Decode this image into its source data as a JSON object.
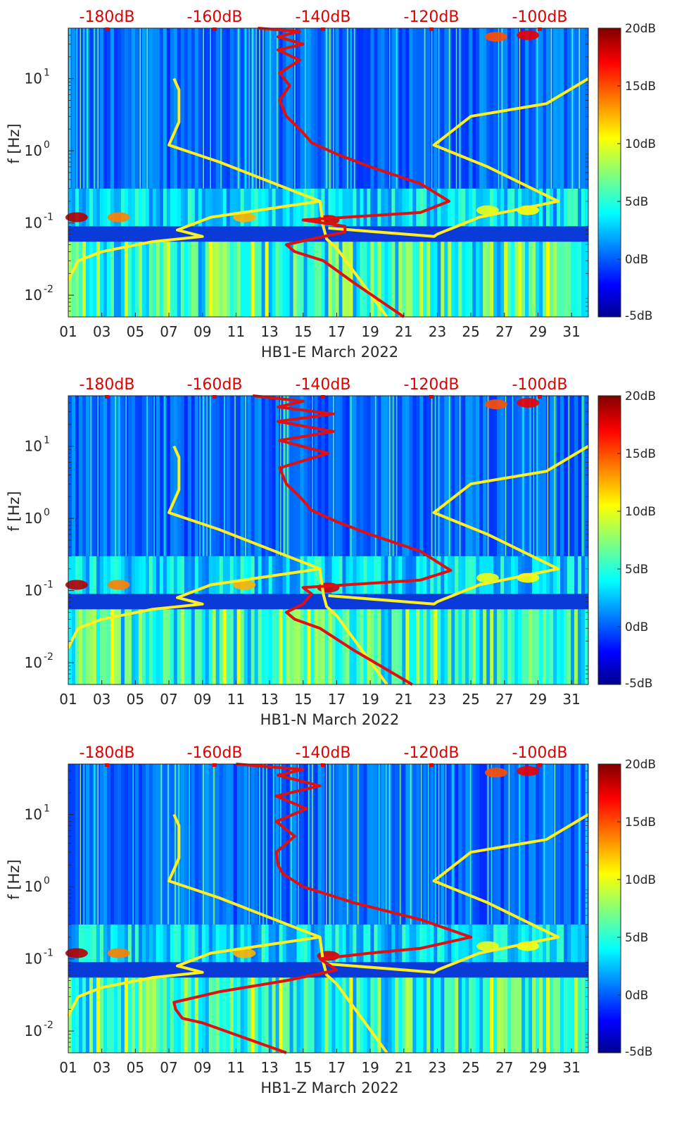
{
  "chart_data": [
    {
      "type": "heatmap",
      "title": "",
      "xlabel": "HB1-E March 2022",
      "ylabel": "f [Hz]",
      "x_ticks": [
        "01",
        "03",
        "05",
        "07",
        "09",
        "11",
        "13",
        "15",
        "17",
        "19",
        "21",
        "23",
        "25",
        "27",
        "29",
        "31"
      ],
      "y_ticks": [
        "10^-2",
        "10^-1",
        "10^0",
        "10^1"
      ],
      "y_scale": "log",
      "ylim": [
        0.005,
        50
      ],
      "xlim": [
        1,
        32
      ],
      "top_axis_labels": [
        "-180dB",
        "-160dB",
        "-140dB",
        "-120dB",
        "-100dB"
      ],
      "colorbar": {
        "ticks": [
          "20dB",
          "15dB",
          "10dB",
          "5dB",
          "0dB",
          "-5dB"
        ],
        "range": [
          -5,
          20
        ],
        "colormap": "jet"
      },
      "series": [
        {
          "color": "#ffee20",
          "points": [
            [
              20.0,
              0.005
            ],
            [
              17.0,
              0.045
            ],
            [
              16.4,
              0.06
            ],
            [
              16.2,
              0.09
            ],
            [
              16.0,
              0.2
            ],
            [
              10.0,
              0.7
            ],
            [
              7.0,
              1.2
            ],
            [
              7.6,
              2.5
            ],
            [
              7.6,
              7.0
            ],
            [
              7.3,
              10.0
            ]
          ]
        },
        {
          "color": "#ffee20",
          "points": [
            [
              1.0,
              0.016
            ],
            [
              1.2,
              0.02
            ],
            [
              1.6,
              0.03
            ],
            [
              3.0,
              0.04
            ],
            [
              6.0,
              0.055
            ],
            [
              9.0,
              0.065
            ],
            [
              7.5,
              0.08
            ],
            [
              9.5,
              0.12
            ],
            [
              16.0,
              0.2
            ]
          ]
        },
        {
          "color": "#ffee20",
          "points": [
            [
              16.5,
              0.085
            ],
            [
              22.8,
              0.065
            ],
            [
              23.0,
              0.07
            ],
            [
              25.5,
              0.12
            ],
            [
              30.2,
              0.2
            ],
            [
              26.0,
              0.6
            ],
            [
              22.8,
              1.2
            ],
            [
              25.0,
              3.0
            ],
            [
              29.5,
              4.5
            ],
            [
              32.0,
              10.0
            ]
          ]
        },
        {
          "color": "#e01010",
          "points": [
            [
              21.0,
              0.005
            ],
            [
              18.0,
              0.015
            ],
            [
              16.2,
              0.03
            ],
            [
              14.5,
              0.04
            ],
            [
              14.0,
              0.05
            ],
            [
              15.5,
              0.06
            ],
            [
              17.5,
              0.075
            ],
            [
              17.5,
              0.09
            ],
            [
              15.0,
              0.11
            ],
            [
              22.0,
              0.14
            ],
            [
              23.7,
              0.2
            ],
            [
              22.0,
              0.35
            ],
            [
              19.0,
              0.6
            ],
            [
              17.0,
              0.9
            ],
            [
              15.5,
              1.3
            ],
            [
              14.8,
              2.0
            ],
            [
              14.0,
              3.0
            ],
            [
              13.6,
              5.0
            ],
            [
              14.2,
              8.0
            ],
            [
              13.6,
              12.0
            ],
            [
              14.8,
              18.0
            ],
            [
              13.5,
              25.0
            ],
            [
              15.0,
              30.0
            ],
            [
              13.5,
              38.0
            ],
            [
              14.8,
              45.0
            ],
            [
              12.3,
              50.0
            ]
          ]
        }
      ]
    },
    {
      "type": "heatmap",
      "title": "",
      "xlabel": "HB1-N March 2022",
      "ylabel": "f [Hz]",
      "x_ticks": [
        "01",
        "03",
        "05",
        "07",
        "09",
        "11",
        "13",
        "15",
        "17",
        "19",
        "21",
        "23",
        "25",
        "27",
        "29",
        "31"
      ],
      "y_ticks": [
        "10^-2",
        "10^-1",
        "10^0",
        "10^1"
      ],
      "y_scale": "log",
      "ylim": [
        0.005,
        50
      ],
      "xlim": [
        1,
        32
      ],
      "top_axis_labels": [
        "-180dB",
        "-160dB",
        "-140dB",
        "-120dB",
        "-100dB"
      ],
      "colorbar": {
        "ticks": [
          "20dB",
          "15dB",
          "10dB",
          "5dB",
          "0dB",
          "-5dB"
        ],
        "range": [
          -5,
          20
        ],
        "colormap": "jet"
      },
      "series": [
        {
          "color": "#ffee20",
          "points": [
            [
              20.0,
              0.005
            ],
            [
              17.0,
              0.045
            ],
            [
              16.4,
              0.06
            ],
            [
              16.2,
              0.09
            ],
            [
              16.0,
              0.2
            ],
            [
              10.0,
              0.7
            ],
            [
              7.0,
              1.2
            ],
            [
              7.6,
              2.5
            ],
            [
              7.6,
              7.0
            ],
            [
              7.3,
              10.0
            ]
          ]
        },
        {
          "color": "#ffee20",
          "points": [
            [
              1.0,
              0.016
            ],
            [
              1.2,
              0.02
            ],
            [
              1.6,
              0.03
            ],
            [
              3.0,
              0.04
            ],
            [
              6.0,
              0.055
            ],
            [
              9.0,
              0.065
            ],
            [
              7.5,
              0.08
            ],
            [
              9.5,
              0.12
            ],
            [
              16.0,
              0.2
            ]
          ]
        },
        {
          "color": "#ffee20",
          "points": [
            [
              16.5,
              0.085
            ],
            [
              22.8,
              0.065
            ],
            [
              23.0,
              0.07
            ],
            [
              25.5,
              0.12
            ],
            [
              30.2,
              0.2
            ],
            [
              26.0,
              0.6
            ],
            [
              22.8,
              1.2
            ],
            [
              25.0,
              3.0
            ],
            [
              29.5,
              4.5
            ],
            [
              32.0,
              10.0
            ]
          ]
        },
        {
          "color": "#e01010",
          "points": [
            [
              21.5,
              0.005
            ],
            [
              18.0,
              0.015
            ],
            [
              16.0,
              0.03
            ],
            [
              14.5,
              0.04
            ],
            [
              14.0,
              0.05
            ],
            [
              15.0,
              0.065
            ],
            [
              15.5,
              0.09
            ],
            [
              15.0,
              0.11
            ],
            [
              22.0,
              0.14
            ],
            [
              23.8,
              0.19
            ],
            [
              22.0,
              0.35
            ],
            [
              19.0,
              0.6
            ],
            [
              17.0,
              0.9
            ],
            [
              15.5,
              1.3
            ],
            [
              14.8,
              2.0
            ],
            [
              14.0,
              3.0
            ],
            [
              13.6,
              5.0
            ],
            [
              16.5,
              8.0
            ],
            [
              13.6,
              12.0
            ],
            [
              16.8,
              16.0
            ],
            [
              13.5,
              22.0
            ],
            [
              16.8,
              28.0
            ],
            [
              13.5,
              35.0
            ],
            [
              15.0,
              42.0
            ],
            [
              12.0,
              50.0
            ]
          ]
        }
      ]
    },
    {
      "type": "heatmap",
      "title": "",
      "xlabel": "HB1-Z March 2022",
      "ylabel": "f [Hz]",
      "x_ticks": [
        "01",
        "03",
        "05",
        "07",
        "09",
        "11",
        "13",
        "15",
        "17",
        "19",
        "21",
        "23",
        "25",
        "27",
        "29",
        "31"
      ],
      "y_ticks": [
        "10^-2",
        "10^-1",
        "10^0",
        "10^1"
      ],
      "y_scale": "log",
      "ylim": [
        0.005,
        50
      ],
      "xlim": [
        1,
        32
      ],
      "top_axis_labels": [
        "-180dB",
        "-160dB",
        "-140dB",
        "-120dB",
        "-100dB"
      ],
      "colorbar": {
        "ticks": [
          "20dB",
          "15dB",
          "10dB",
          "5dB",
          "0dB",
          "-5dB"
        ],
        "range": [
          -5,
          20
        ],
        "colormap": "jet"
      },
      "series": [
        {
          "color": "#ffee20",
          "points": [
            [
              20.0,
              0.005
            ],
            [
              17.0,
              0.045
            ],
            [
              16.4,
              0.06
            ],
            [
              16.2,
              0.09
            ],
            [
              16.0,
              0.2
            ],
            [
              10.0,
              0.7
            ],
            [
              7.0,
              1.2
            ],
            [
              7.6,
              2.5
            ],
            [
              7.6,
              7.0
            ],
            [
              7.3,
              10.0
            ]
          ]
        },
        {
          "color": "#ffee20",
          "points": [
            [
              1.0,
              0.016
            ],
            [
              1.2,
              0.02
            ],
            [
              1.6,
              0.03
            ],
            [
              3.0,
              0.04
            ],
            [
              6.0,
              0.055
            ],
            [
              9.0,
              0.065
            ],
            [
              7.5,
              0.08
            ],
            [
              9.5,
              0.12
            ],
            [
              16.0,
              0.2
            ]
          ]
        },
        {
          "color": "#ffee20",
          "points": [
            [
              16.5,
              0.085
            ],
            [
              22.8,
              0.065
            ],
            [
              23.0,
              0.07
            ],
            [
              25.5,
              0.12
            ],
            [
              30.2,
              0.2
            ],
            [
              26.0,
              0.6
            ],
            [
              22.8,
              1.2
            ],
            [
              25.0,
              3.0
            ],
            [
              29.5,
              4.5
            ],
            [
              32.0,
              10.0
            ]
          ]
        },
        {
          "color": "#e01010",
          "points": [
            [
              14.0,
              0.005
            ],
            [
              9.0,
              0.013
            ],
            [
              7.8,
              0.015
            ],
            [
              7.4,
              0.02
            ],
            [
              7.3,
              0.025
            ],
            [
              10.0,
              0.035
            ],
            [
              14.0,
              0.05
            ],
            [
              17.0,
              0.07
            ],
            [
              16.0,
              0.1
            ],
            [
              19.0,
              0.12
            ],
            [
              22.0,
              0.14
            ],
            [
              25.0,
              0.2
            ],
            [
              22.0,
              0.35
            ],
            [
              18.0,
              0.6
            ],
            [
              15.0,
              1.0
            ],
            [
              13.8,
              1.5
            ],
            [
              13.5,
              2.0
            ],
            [
              13.4,
              3.0
            ],
            [
              14.5,
              5.0
            ],
            [
              13.4,
              8.0
            ],
            [
              15.2,
              12.0
            ],
            [
              13.4,
              18.0
            ],
            [
              16.0,
              25.0
            ],
            [
              13.5,
              35.0
            ],
            [
              15.0,
              42.0
            ],
            [
              11.0,
              50.0
            ]
          ]
        }
      ]
    }
  ]
}
